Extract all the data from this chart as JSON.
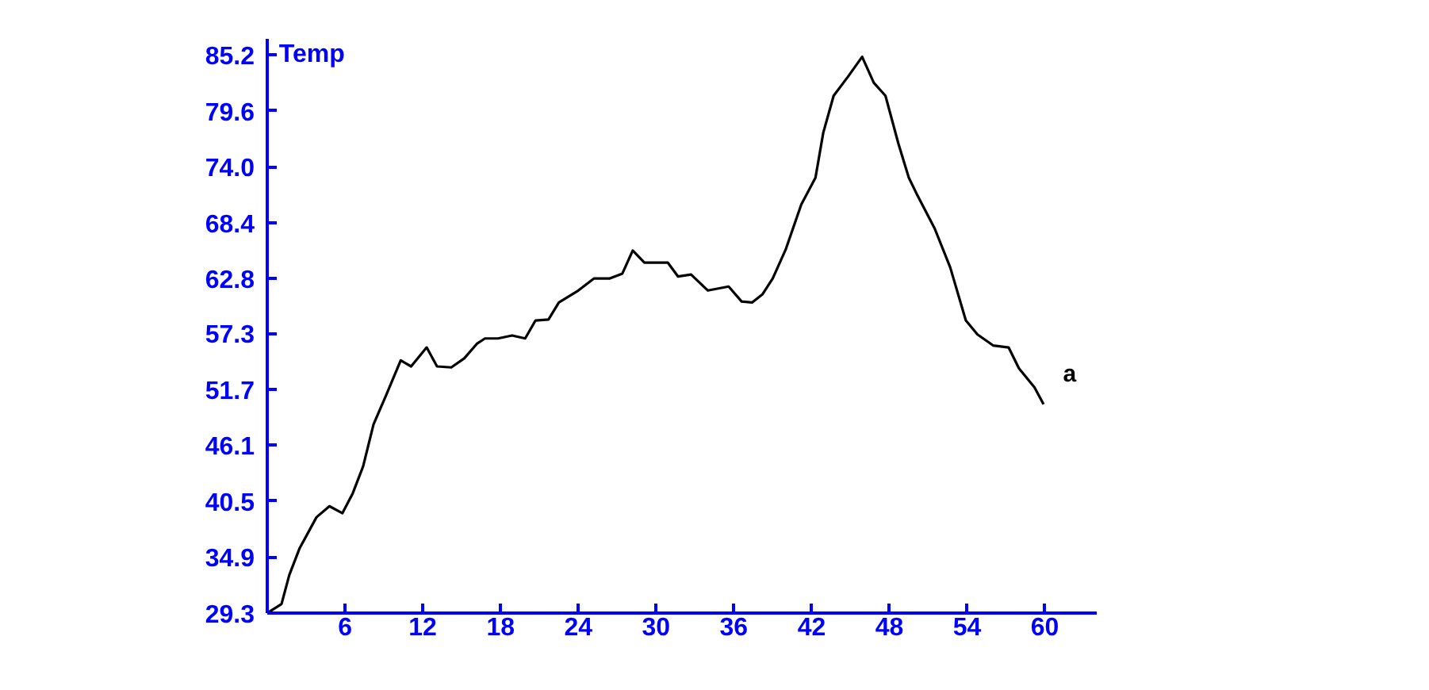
{
  "chart_data": {
    "type": "line",
    "ylabel": "Temp",
    "x": [
      0,
      1.1,
      1.7,
      2.5,
      3.8,
      4.8,
      5.8,
      6.6,
      7.4,
      8.2,
      9.1,
      10.3,
      11.1,
      12.3,
      13.1,
      14.2,
      15.2,
      16.2,
      16.8,
      17.8,
      18.9,
      19.9,
      20.7,
      21.7,
      22.5,
      24.0,
      25.2,
      26.4,
      27.4,
      28.2,
      29.1,
      30.9,
      31.7,
      32.7,
      34.0,
      35.6,
      36.6,
      37.4,
      38.2,
      39.0,
      40.0,
      41.2,
      42.3,
      42.9,
      43.7,
      44.8,
      45.9,
      46.8,
      47.7,
      48.7,
      49.5,
      50.1,
      51.5,
      52.7,
      53.9,
      54.8,
      56.0,
      57.2,
      58.0,
      59.2,
      59.9
    ],
    "series": [
      {
        "name": "a",
        "color": "#000000",
        "values": [
          29.3,
          30.2,
          33.1,
          35.8,
          38.9,
          40.0,
          39.3,
          41.3,
          44.0,
          48.2,
          50.9,
          54.6,
          54.0,
          55.9,
          54.0,
          53.9,
          54.8,
          56.3,
          56.8,
          56.8,
          57.1,
          56.8,
          58.6,
          58.7,
          60.4,
          61.6,
          62.8,
          62.8,
          63.3,
          65.6,
          64.4,
          64.4,
          63.0,
          63.2,
          61.6,
          62.0,
          60.5,
          60.4,
          61.2,
          62.8,
          65.7,
          70.2,
          72.9,
          77.4,
          81.1,
          83.0,
          85.0,
          82.4,
          81.1,
          76.3,
          72.9,
          71.3,
          67.8,
          63.9,
          58.6,
          57.2,
          56.1,
          55.9,
          53.8,
          51.9,
          50.2
        ]
      }
    ],
    "xlim": [
      0,
      64
    ],
    "ylim": [
      29.3,
      86.8
    ],
    "xticks": [
      6,
      12,
      18,
      24,
      30,
      36,
      42,
      48,
      54,
      60
    ],
    "yticks": [
      29.3,
      34.9,
      40.5,
      46.1,
      51.7,
      57.3,
      62.8,
      68.4,
      {
        "value": 74,
        "label": "74.0"
      },
      79.6,
      85.2
    ],
    "grid": false,
    "line_style": "solid",
    "marker": "none"
  }
}
